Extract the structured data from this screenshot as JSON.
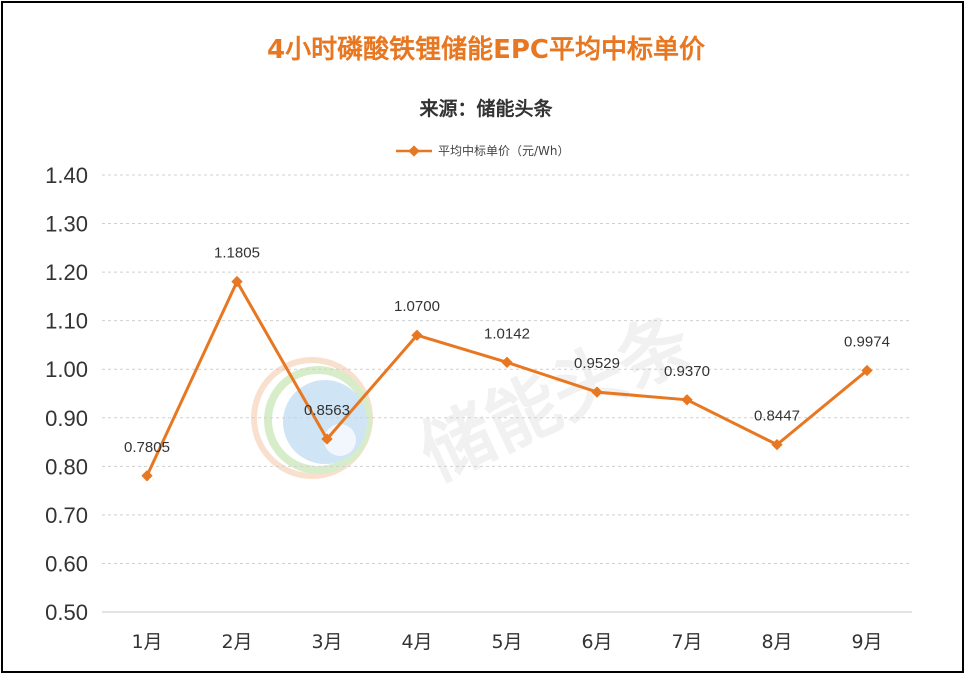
{
  "colors": {
    "accent": "#E87722",
    "grid": "#d0d0d0",
    "text": "#333333"
  },
  "watermark": {
    "text": "储能头条"
  },
  "chart_data": {
    "type": "line",
    "title": "4小时磷酸铁锂储能EPC平均中标单价",
    "subtitle": "来源：储能头条",
    "legend": {
      "position": "top",
      "label": "平均中标单价（元/Wh）"
    },
    "categories": [
      "1月",
      "2月",
      "3月",
      "4月",
      "5月",
      "6月",
      "7月",
      "8月",
      "9月"
    ],
    "series": [
      {
        "name": "平均中标单价（元/Wh）",
        "values": [
          0.7805,
          1.1805,
          0.8563,
          1.07,
          1.0142,
          0.9529,
          0.937,
          0.8447,
          0.9974
        ],
        "labels": [
          "0.7805",
          "1.1805",
          "0.8563",
          "1.0700",
          "1.0142",
          "0.9529",
          "0.9370",
          "0.8447",
          "0.9974"
        ],
        "color": "#E87722"
      }
    ],
    "yticks": [
      "0.50",
      "0.60",
      "0.70",
      "0.80",
      "0.90",
      "1.00",
      "1.10",
      "1.20",
      "1.30",
      "1.40"
    ],
    "ylim": [
      0.5,
      1.4
    ],
    "grid": true
  }
}
